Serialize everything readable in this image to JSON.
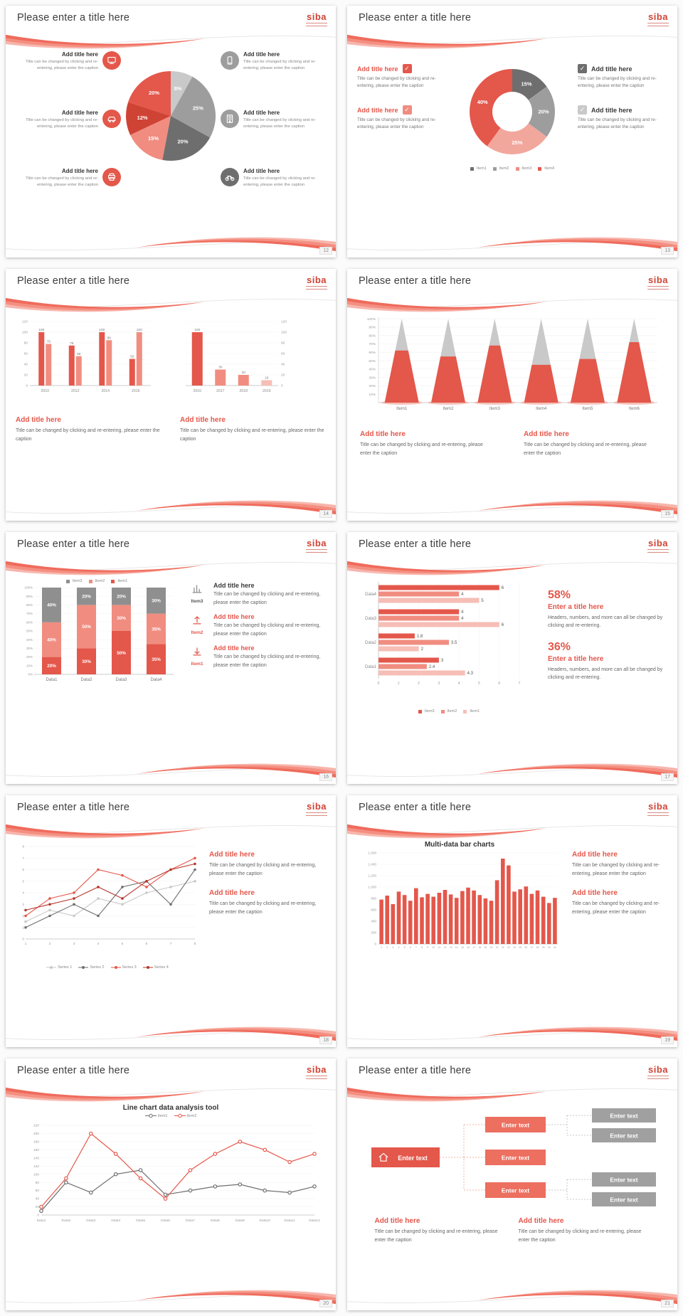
{
  "common": {
    "slide_title": "Please enter a title here",
    "logo": "siba",
    "add_title": "Add title here",
    "caption": "Title can be changed by clicking and re-entering, please enter the caption"
  },
  "colors": {
    "red": "#e4574b",
    "red_dark": "#cf4335",
    "salmon": "#f08d80",
    "pink": "#f6beb6",
    "gray_dark": "#6e6e6e",
    "gray_mid": "#9d9d9d",
    "gray_light": "#c9c9c9",
    "swoosh": "#ef6b5c",
    "swoosh_light": "#f59d90"
  },
  "slides": [
    {
      "page": "12",
      "name": "pie-with-icon-callouts",
      "chart_data": {
        "type": "pie",
        "values": [
          8,
          25,
          20,
          15,
          12,
          20
        ],
        "labels": [
          "8%",
          "25%",
          "20%",
          "15%",
          "12%",
          "20%"
        ],
        "colors": [
          "#c9c9c9",
          "#9d9d9d",
          "#6e6e6e",
          "#f08d80",
          "#cf4335",
          "#e4574b"
        ]
      },
      "callouts": [
        {
          "icon": "monitor",
          "icon_color": "#e4574b"
        },
        {
          "icon": "phone",
          "icon_color": "#9d9d9d"
        },
        {
          "icon": "car",
          "icon_color": "#e4574b"
        },
        {
          "icon": "building",
          "icon_color": "#9d9d9d"
        },
        {
          "icon": "printer",
          "icon_color": "#e4574b"
        },
        {
          "icon": "bicycle",
          "icon_color": "#6e6e6e"
        }
      ]
    },
    {
      "page": "13",
      "name": "donut-with-checkboxes",
      "chart_data": {
        "type": "donut",
        "values": [
          15,
          20,
          25,
          40
        ],
        "labels": [
          "15%",
          "20%",
          "25%",
          "40%"
        ],
        "colors": [
          "#6e6e6e",
          "#9d9d9d",
          "#f2a79d",
          "#e4574b"
        ],
        "legend": [
          "Item1",
          "Item2",
          "Item3",
          "Item4"
        ],
        "legend_colors": [
          "#6e6e6e",
          "#9d9d9d",
          "#f08d80",
          "#e4574b"
        ]
      },
      "items": [
        {
          "side": "l",
          "title_color": "#e4574b",
          "check": "#e4574b"
        },
        {
          "side": "l",
          "title_color": "#e4574b",
          "check": "#f08d80"
        },
        {
          "side": "r",
          "title_color": "#3a3a3a",
          "check": "#6e6e6e"
        },
        {
          "side": "r",
          "title_color": "#3a3a3a",
          "check": "#c9c9c9"
        }
      ]
    },
    {
      "page": "14",
      "name": "two-bar-charts",
      "chart_data": [
        {
          "type": "bar",
          "categories": [
            "2010",
            "2012",
            "2014",
            "2016"
          ],
          "series": [
            {
              "name": "series-red",
              "color": "#e4574b",
              "values": [
                100,
                75,
                100,
                50
              ]
            },
            {
              "name": "series-salmon",
              "color": "#f08d80",
              "values": [
                78,
                55,
                85,
                100
              ]
            }
          ],
          "yticks": [
            0,
            20,
            40,
            60,
            80,
            100,
            120
          ]
        },
        {
          "type": "bar",
          "categories": [
            "2016",
            "2017",
            "2018",
            "2019"
          ],
          "values": [
            100,
            30,
            20,
            10
          ],
          "bar_colors": [
            "#e4574b",
            "#f08d80",
            "#f08d80",
            "#f6beb6"
          ],
          "yticks": [
            0,
            20,
            40,
            60,
            80,
            100,
            120
          ]
        }
      ]
    },
    {
      "page": "15",
      "name": "cone-chart",
      "chart_data": {
        "type": "cone",
        "categories": [
          "Item1",
          "Item2",
          "Item3",
          "Item4",
          "Item5",
          "Item6"
        ],
        "values_pct": [
          62,
          55,
          68,
          45,
          52,
          72
        ],
        "yticks": [
          "10%",
          "20%",
          "30%",
          "40%",
          "50%",
          "60%",
          "70%",
          "80%",
          "90%",
          "100%"
        ]
      }
    },
    {
      "page": "16",
      "name": "stacked-column-chart",
      "chart_data": {
        "type": "stacked_bar",
        "categories": [
          "Data1",
          "Data2",
          "Data3",
          "Data4"
        ],
        "series": [
          {
            "name": "Item1",
            "color": "#e4574b",
            "values": [
              20,
              30,
              50,
              35
            ]
          },
          {
            "name": "Item2",
            "color": "#f08d80",
            "values": [
              40,
              50,
              30,
              35
            ]
          },
          {
            "name": "Item3",
            "color": "#8f8f8f",
            "values": [
              40,
              20,
              20,
              30
            ]
          }
        ],
        "yticks": [
          "0%",
          "10%",
          "20%",
          "30%",
          "40%",
          "50%",
          "60%",
          "70%",
          "80%",
          "90%",
          "100%"
        ],
        "legend_order": [
          "Item3",
          "Item2",
          "Item1"
        ]
      },
      "rows": [
        {
          "item": "Item3",
          "icon": "chart",
          "icon_color": "#8f8f8f",
          "label_color": "#555555",
          "title_color": "#3a3a3a"
        },
        {
          "item": "Item2",
          "icon": "arrow-up",
          "icon_color": "#e4574b",
          "label_color": "#e4574b",
          "title_color": "#e4574b"
        },
        {
          "item": "Item1",
          "icon": "arrow-down",
          "icon_color": "#e4574b",
          "label_color": "#e4574b",
          "title_color": "#e4574b"
        }
      ]
    },
    {
      "page": "17",
      "name": "horizontal-bars-with-stats",
      "chart_data": {
        "type": "hbar",
        "categories": [
          "Data1",
          "Data2",
          "Data3",
          "Data4"
        ],
        "series": [
          {
            "name": "Item3",
            "color": "#e4574b",
            "values": [
              3,
              1.8,
              4,
              6
            ]
          },
          {
            "name": "Item2",
            "color": "#f08d80",
            "values": [
              2.4,
              3.5,
              4,
              4
            ]
          },
          {
            "name": "Item1",
            "color": "#f6beb6",
            "values": [
              4.3,
              2,
              6,
              5
            ]
          }
        ],
        "xticks": [
          0,
          1,
          2,
          3,
          4,
          5,
          6,
          7
        ],
        "legend_order": [
          "Item3",
          "Item2",
          "Item1"
        ]
      },
      "stats": [
        {
          "value": "58%",
          "title": "Enter a title here",
          "caption": "Headers, numbers, and more can all be changed by clicking and re-entering."
        },
        {
          "value": "36%",
          "title": "Enter a title here",
          "caption": "Headers, numbers, and more can all be changed by clicking and re-entering."
        }
      ]
    },
    {
      "page": "18",
      "name": "multi-series-line-chart",
      "chart_data": {
        "type": "line",
        "x": [
          1,
          2,
          3,
          4,
          5,
          6,
          7,
          8
        ],
        "series": [
          {
            "name": "Series 1",
            "color": "#c9c9c9",
            "values": [
              1.5,
              2.5,
              2,
              3.5,
              3,
              4,
              4.5,
              5
            ]
          },
          {
            "name": "Series 2",
            "color": "#6e6e6e",
            "values": [
              1,
              2,
              3,
              2,
              4.5,
              5,
              3,
              6
            ]
          },
          {
            "name": "Series 3",
            "color": "#e4574b",
            "values": [
              2,
              3.5,
              4,
              6,
              5.5,
              4.5,
              6,
              7
            ]
          },
          {
            "name": "Series 4",
            "color": "#b5372b",
            "values": [
              2.5,
              3,
              3.5,
              4.5,
              3.5,
              5,
              6,
              6.5
            ]
          }
        ],
        "yticks": [
          0,
          1,
          2,
          3,
          4,
          5,
          6,
          7,
          8
        ]
      }
    },
    {
      "page": "19",
      "name": "multi-data-bar-chart",
      "chart_data": {
        "type": "bar",
        "title": "Multi-data bar charts",
        "x_labels": [
          "1",
          "2",
          "3",
          "4",
          "5",
          "6",
          "7",
          "8",
          "9",
          "10",
          "11",
          "12",
          "13",
          "14",
          "15",
          "16",
          "17",
          "18",
          "19",
          "20",
          "21",
          "22",
          "23",
          "24",
          "25",
          "26",
          "27",
          "28",
          "29",
          "30",
          "31"
        ],
        "values": [
          780,
          850,
          700,
          920,
          860,
          760,
          980,
          820,
          880,
          830,
          900,
          950,
          870,
          810,
          930,
          990,
          940,
          860,
          800,
          760,
          1120,
          1500,
          1380,
          920,
          960,
          1010,
          880,
          940,
          830,
          720,
          810
        ],
        "yticks": [
          "0",
          "200",
          "400",
          "600",
          "800",
          "1,000",
          "1,200",
          "1,400",
          "1,600"
        ],
        "color": "#e4574b"
      }
    },
    {
      "page": "20",
      "name": "line-chart-analysis-tool",
      "chart_data": {
        "type": "line",
        "title": "Line chart data analysis tool",
        "categories": [
          "Data1",
          "Data2",
          "Data3",
          "Data4",
          "Data5",
          "Data6",
          "Data7",
          "Data8",
          "Data9",
          "Data10",
          "Data11",
          "Data12"
        ],
        "series": [
          {
            "name": "Item1",
            "color": "#6e6e6e",
            "values": [
              10,
              80,
              55,
              100,
              110,
              50,
              60,
              70,
              75,
              60,
              55,
              70
            ]
          },
          {
            "name": "Item2",
            "color": "#e4574b",
            "values": [
              20,
              90,
              200,
              150,
              90,
              40,
              110,
              150,
              180,
              160,
              130,
              150
            ]
          }
        ],
        "yticks": [
          0,
          20,
          40,
          60,
          80,
          100,
          120,
          140,
          160,
          180,
          200,
          220
        ]
      }
    },
    {
      "page": "21",
      "name": "org-chart-diagram",
      "diagram": {
        "root": {
          "label": "Enter text",
          "icon": "home"
        },
        "mid": [
          {
            "label": "Enter text"
          },
          {
            "label": "Enter text"
          },
          {
            "label": "Enter text"
          }
        ],
        "leaf": [
          {
            "label": "Enter text"
          },
          {
            "label": "Enter text"
          },
          {
            "label": "Enter text"
          },
          {
            "label": "Enter text"
          }
        ]
      }
    }
  ]
}
